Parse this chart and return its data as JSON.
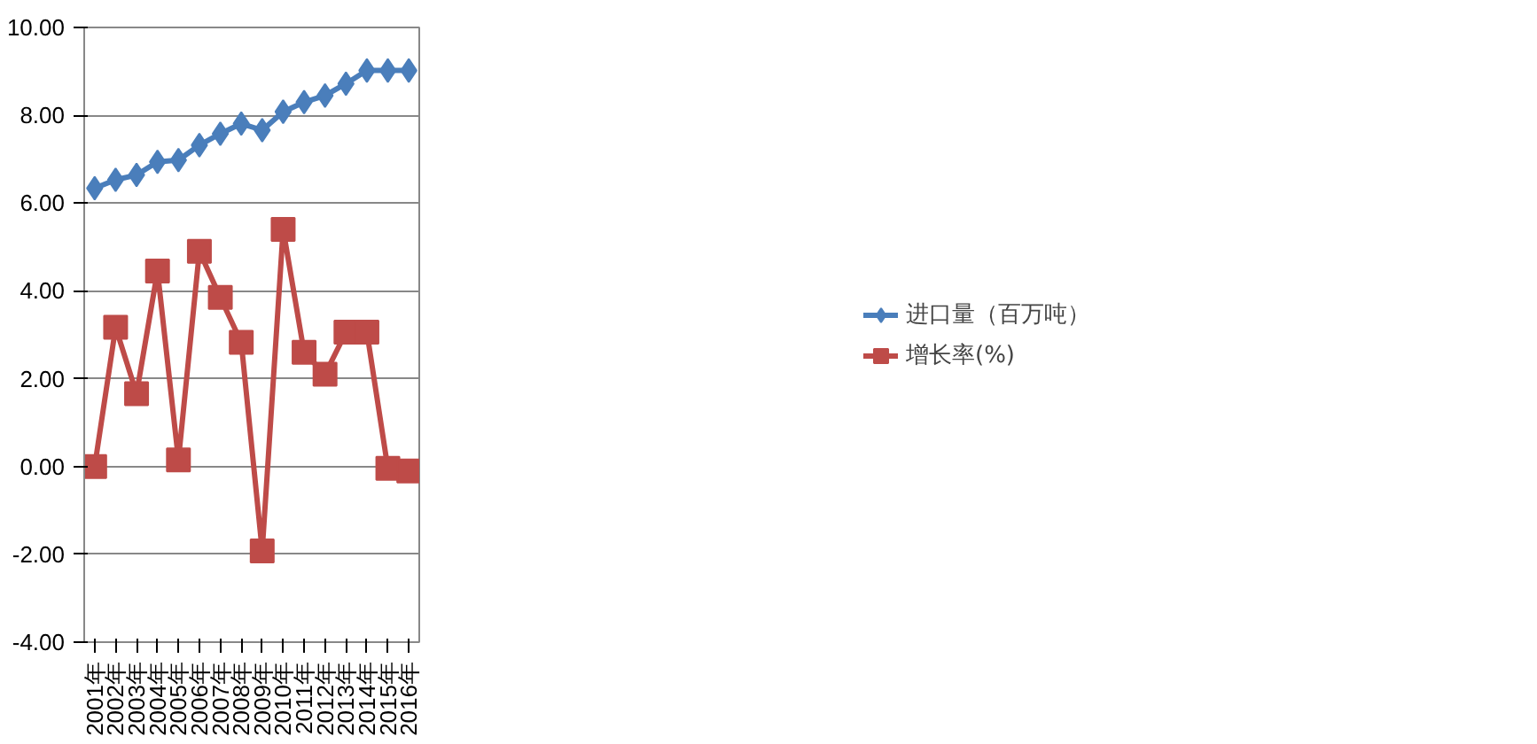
{
  "chart_data": {
    "type": "line",
    "categories": [
      "2001年",
      "2002年",
      "2003年",
      "2004年",
      "2005年",
      "2006年",
      "2007年",
      "2008年",
      "2009年",
      "2010年",
      "2011年",
      "2012年",
      "2013年",
      "2014年",
      "2015年",
      "2016年"
    ],
    "series": [
      {
        "name": "进口量（百万吨）",
        "color": "#4a7ebb",
        "marker": "diamond",
        "values": [
          6.34,
          6.53,
          6.64,
          6.94,
          6.98,
          7.32,
          7.58,
          7.81,
          7.66,
          8.08,
          8.3,
          8.45,
          8.72,
          9.02,
          9.02,
          9.02
        ]
      },
      {
        "name": "增长率(%)",
        "color": "#be4b48",
        "marker": "square",
        "values": [
          0,
          3.17,
          1.66,
          4.45,
          0.15,
          4.9,
          3.85,
          2.83,
          -1.92,
          5.4,
          2.6,
          2.1,
          3.06,
          3.06,
          -0.04,
          -0.1
        ]
      }
    ],
    "ylim": [
      -4,
      10
    ],
    "yticks": [
      {
        "value": -4,
        "label": "-4.00"
      },
      {
        "value": -2,
        "label": "-2.00"
      },
      {
        "value": 0,
        "label": "0.00"
      },
      {
        "value": 2,
        "label": "2.00"
      },
      {
        "value": 4,
        "label": "4.00"
      },
      {
        "value": 6,
        "label": "6.00"
      },
      {
        "value": 8,
        "label": "8.00"
      },
      {
        "value": 10,
        "label": "10.00"
      }
    ],
    "grid": "y",
    "legend": "right",
    "line_style": "solid"
  }
}
